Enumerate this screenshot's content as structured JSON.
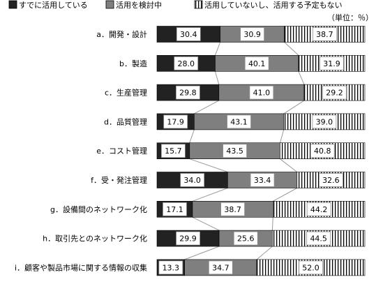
{
  "chart_data": {
    "type": "bar",
    "stacked": "percent",
    "orientation": "horizontal",
    "unit_note": "（単位：％）",
    "legend_position": "top",
    "colors": {
      "already": "#222222",
      "considering": "#7f7f7f",
      "notplanned_bg": "#ffffff",
      "notplanned_stripe": "#000000",
      "connector": "#9a9a9a"
    },
    "categories": [
      "a．開発・設計",
      "b．製造",
      "c．生産管理",
      "d．品質管理",
      "e．コスト管理",
      "f．受・発注管理",
      "g．設備間のネットワーク化",
      "h．取引先とのネットワーク化",
      "i．顧客や製品市場に関する情報の収集"
    ],
    "series": [
      {
        "key": "already",
        "name": "すでに活用している",
        "values": [
          30.4,
          28.0,
          29.8,
          17.9,
          15.7,
          34.0,
          17.1,
          29.9,
          13.3
        ]
      },
      {
        "key": "considering",
        "name": "活用を検討中",
        "values": [
          30.9,
          40.1,
          41.0,
          43.1,
          43.5,
          33.4,
          38.7,
          25.6,
          34.7
        ]
      },
      {
        "key": "notplanned",
        "name": "活用していないし、活用する予定もない",
        "values": [
          38.7,
          31.9,
          29.2,
          39.0,
          40.8,
          32.6,
          44.2,
          44.5,
          52.0
        ]
      }
    ]
  }
}
